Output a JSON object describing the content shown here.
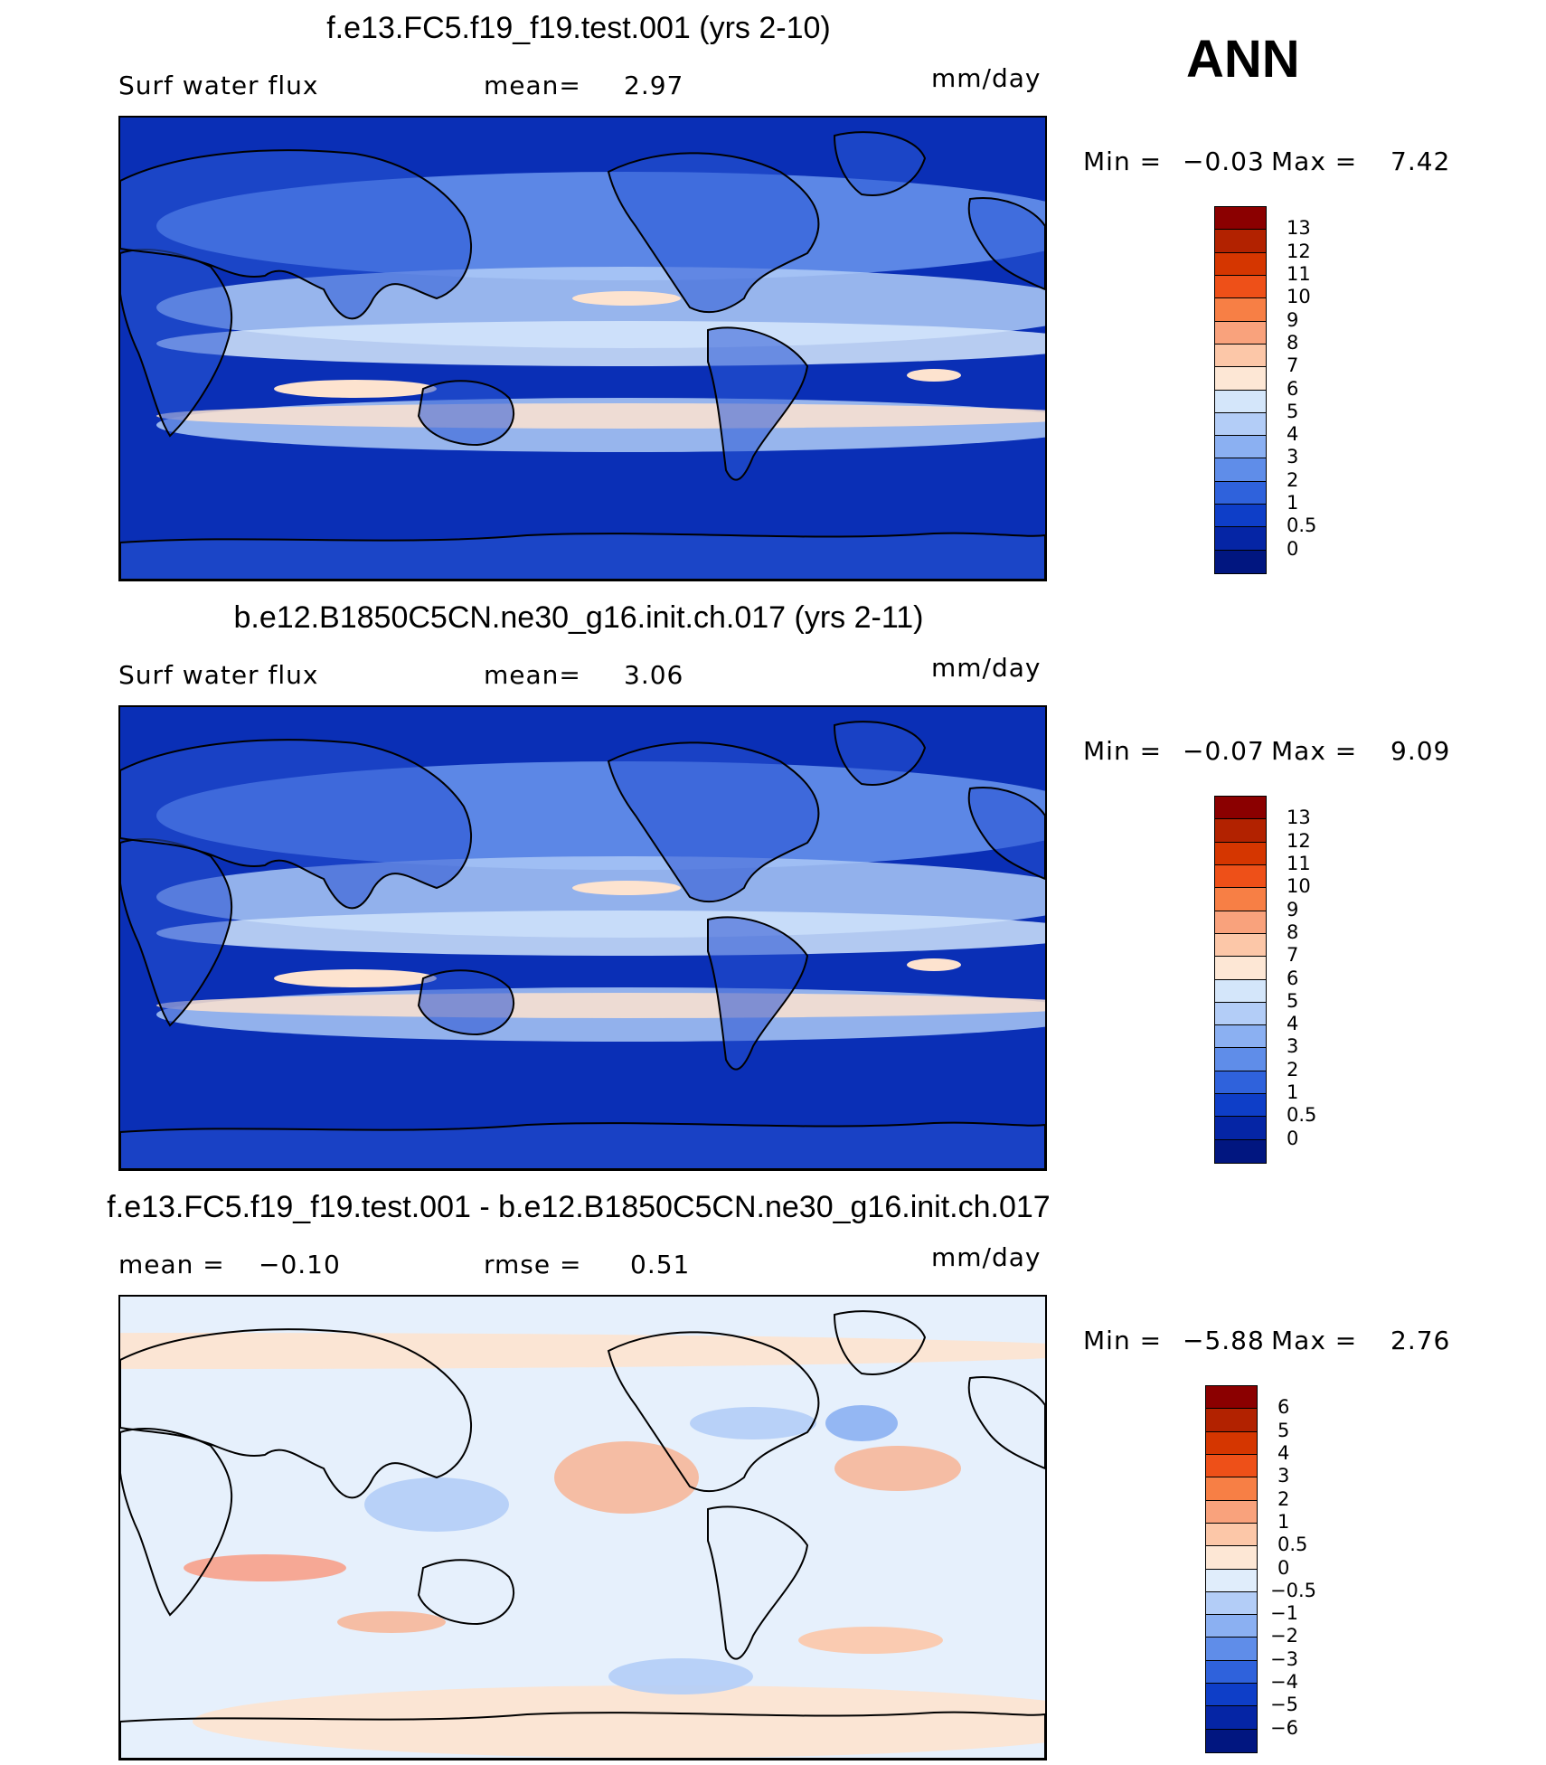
{
  "season": "ANN",
  "panels": [
    {
      "title": "f.e13.FC5.f19_f19.test.001 (yrs 2-10)",
      "variable": "Surf water flux",
      "stat1_label": "mean=",
      "stat1_value": "2.97",
      "stat2_label": "",
      "stat2_value": "",
      "units": "mm/day",
      "min_label": "Min =",
      "min_value": "−0.03",
      "max_label": "Max =",
      "max_value": "7.42",
      "legend_levels": [
        "13",
        "12",
        "11",
        "10",
        "9",
        "8",
        "7",
        "6",
        "5",
        "4",
        "3",
        "2",
        "1",
        "0.5",
        "0"
      ],
      "legend_colors": [
        "#8b0000",
        "#b22200",
        "#d53600",
        "#ee5018",
        "#f77f45",
        "#f9a27c",
        "#fcc7a8",
        "#fde7d5",
        "#d4e6fa",
        "#b3cdf7",
        "#8bb0f2",
        "#5f8de9",
        "#2f62dc",
        "#0e3ec8",
        "#0525a5",
        "#011680"
      ],
      "map_palette": {
        "deep": "#0a2fb6",
        "land": "#2a58d6",
        "mid": "#6b96ee",
        "light": "#b0ccf7",
        "pale": "#d6e8fb",
        "warm": "#fde3cf"
      }
    },
    {
      "title": "b.e12.B1850C5CN.ne30_g16.init.ch.017 (yrs 2-11)",
      "variable": "Surf water flux",
      "stat1_label": "mean=",
      "stat1_value": "3.06",
      "stat2_label": "",
      "stat2_value": "",
      "units": "mm/day",
      "min_label": "Min =",
      "min_value": "−0.07",
      "max_label": "Max =",
      "max_value": "9.09",
      "legend_levels": [
        "13",
        "12",
        "11",
        "10",
        "9",
        "8",
        "7",
        "6",
        "5",
        "4",
        "3",
        "2",
        "1",
        "0.5",
        "0"
      ],
      "legend_colors": [
        "#8b0000",
        "#b22200",
        "#d53600",
        "#ee5018",
        "#f77f45",
        "#f9a27c",
        "#fcc7a8",
        "#fde7d5",
        "#d4e6fa",
        "#b3cdf7",
        "#8bb0f2",
        "#5f8de9",
        "#2f62dc",
        "#0e3ec8",
        "#0525a5",
        "#011680"
      ],
      "map_palette": {
        "deep": "#0a2fb6",
        "land": "#2651d2",
        "mid": "#6b96ee",
        "light": "#aac8f6",
        "pale": "#d0e4fb",
        "warm": "#fde3cf"
      }
    },
    {
      "title": "f.e13.FC5.f19_f19.test.001 - b.e12.B1850C5CN.ne30_g16.init.ch.017",
      "variable": "",
      "stat1_label": "mean =",
      "stat1_value": "−0.10",
      "stat2_label": "rmse =",
      "stat2_value": "0.51",
      "units": "mm/day",
      "min_label": "Min =",
      "min_value": "−5.88",
      "max_label": "Max =",
      "max_value": "2.76",
      "legend_levels": [
        "6",
        "5",
        "4",
        "3",
        "2",
        "1",
        "0.5",
        "0",
        "−0.5",
        "−1",
        "−2",
        "−3",
        "−4",
        "−5",
        "−6"
      ],
      "legend_colors": [
        "#8b0000",
        "#b22200",
        "#d53600",
        "#ee5018",
        "#f77f45",
        "#f9a27c",
        "#fcc7a8",
        "#fde7d5",
        "#e0edfb",
        "#b3cdf7",
        "#8bb0f2",
        "#5f8de9",
        "#2f62dc",
        "#0e3ec8",
        "#0525a5",
        "#011680"
      ],
      "map_palette": {
        "deep": "#2f62dc",
        "land": "#8bb0f2",
        "mid": "#b3cdf7",
        "light": "#d6e8fb",
        "pale": "#e6f0fc",
        "warm": "#fde3cf"
      }
    }
  ]
}
